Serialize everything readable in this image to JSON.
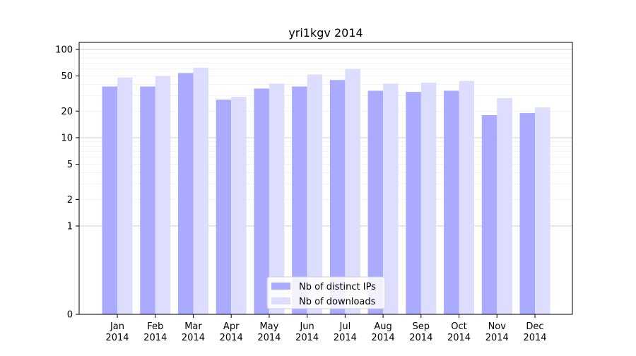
{
  "chart_data": {
    "type": "bar",
    "title": "yri1kgv 2014",
    "xlabel": "",
    "ylabel": "",
    "y_scale": "symlog",
    "ylim": [
      0,
      120
    ],
    "grid": true,
    "legend_position": "lower center",
    "categories": [
      [
        "Jan",
        "2014"
      ],
      [
        "Feb",
        "2014"
      ],
      [
        "Mar",
        "2014"
      ],
      [
        "Apr",
        "2014"
      ],
      [
        "May",
        "2014"
      ],
      [
        "Jun",
        "2014"
      ],
      [
        "Jul",
        "2014"
      ],
      [
        "Aug",
        "2014"
      ],
      [
        "Sep",
        "2014"
      ],
      [
        "Oct",
        "2014"
      ],
      [
        "Nov",
        "2014"
      ],
      [
        "Dec",
        "2014"
      ]
    ],
    "y_ticks": [
      "0",
      "1",
      "2",
      "5",
      "10",
      "20",
      "50",
      "100"
    ],
    "series": [
      {
        "name": "Nb of distinct IPs",
        "color": "#aaaaff",
        "values": [
          38,
          38,
          54,
          27,
          36,
          38,
          45,
          34,
          33,
          34,
          18,
          19
        ]
      },
      {
        "name": "Nb of downloads",
        "color": "#ddddff",
        "values": [
          48,
          50,
          62,
          29,
          41,
          52,
          60,
          41,
          42,
          44,
          28,
          22
        ]
      }
    ]
  }
}
